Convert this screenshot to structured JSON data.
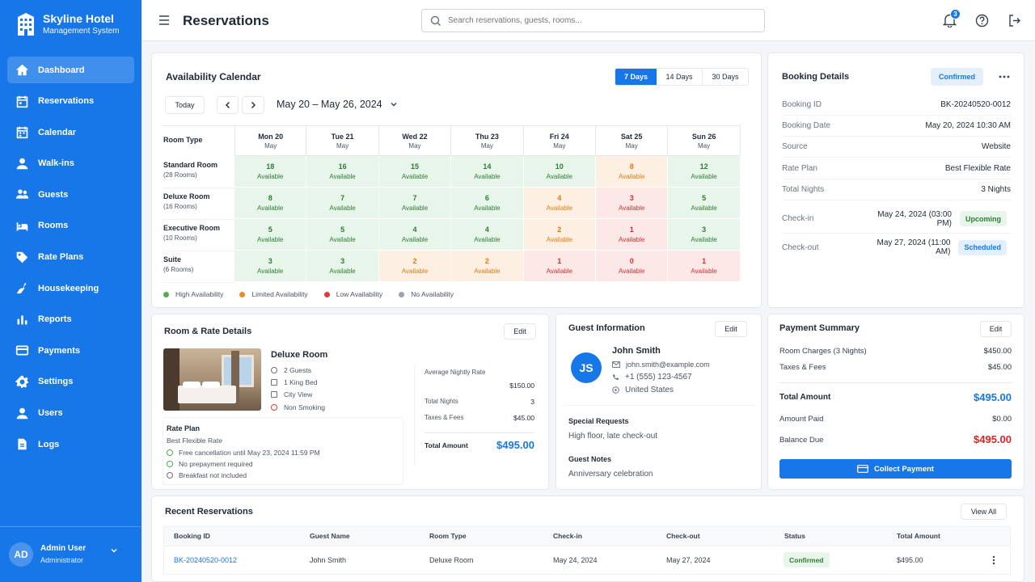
{
  "brand": {
    "name": "Skyline Hotel",
    "sub": "Management System"
  },
  "nav": [
    {
      "label": "Dashboard",
      "icon": "home-icon",
      "active": true
    },
    {
      "label": "Reservations",
      "icon": "calendar-icon"
    },
    {
      "label": "Calendar",
      "icon": "calendar-grid-icon"
    },
    {
      "label": "Walk-ins",
      "icon": "person-icon"
    },
    {
      "label": "Guests",
      "icon": "users-icon"
    },
    {
      "label": "Rooms",
      "icon": "bed-icon"
    },
    {
      "label": "Rate Plans",
      "icon": "tag-icon"
    },
    {
      "label": "Housekeeping",
      "icon": "broom-icon"
    },
    {
      "label": "Reports",
      "icon": "bar-chart-icon"
    },
    {
      "label": "Payments",
      "icon": "card-icon"
    },
    {
      "label": "Settings",
      "icon": "gear-icon"
    },
    {
      "label": "Users",
      "icon": "user-icon"
    },
    {
      "label": "Logs",
      "icon": "document-icon"
    }
  ],
  "user": {
    "initials": "AD",
    "name": "Admin User",
    "role": "Administrator"
  },
  "header": {
    "title": "Reservations",
    "search_placeholder": "Search reservations, guests, rooms...",
    "notif_count": "3"
  },
  "calendar": {
    "title": "Availability Calendar",
    "ranges": [
      "7 Days",
      "14 Days",
      "30 Days"
    ],
    "active_range": "7 Days",
    "today": "Today",
    "period": "May 20 – May 26, 2024",
    "room_type_header": "Room Type",
    "days": [
      {
        "d": "Mon 20",
        "m": "May"
      },
      {
        "d": "Tue 21",
        "m": "May"
      },
      {
        "d": "Wed 22",
        "m": "May"
      },
      {
        "d": "Thu 23",
        "m": "May"
      },
      {
        "d": "Fri 24",
        "m": "May"
      },
      {
        "d": "Sat 25",
        "m": "May"
      },
      {
        "d": "Sun 26",
        "m": "May"
      }
    ],
    "rooms": [
      {
        "name": "Standard Room",
        "count": "(28 Rooms)",
        "values": [
          18,
          16,
          15,
          14,
          10,
          8,
          12
        ]
      },
      {
        "name": "Deluxe Room",
        "count": "(16 Rooms)",
        "values": [
          8,
          7,
          7,
          6,
          4,
          3,
          5
        ]
      },
      {
        "name": "Executive Room",
        "count": "(10 Rooms)",
        "values": [
          5,
          5,
          4,
          4,
          2,
          1,
          3
        ]
      },
      {
        "name": "Suite",
        "count": "(6 Rooms)",
        "values": [
          3,
          3,
          2,
          2,
          1,
          0,
          1
        ]
      }
    ],
    "avail_label": "Available",
    "levels": {
      "Standard Room": [
        "high",
        "high",
        "high",
        "high",
        "high",
        "limited",
        "high"
      ],
      "Deluxe Room": [
        "high",
        "high",
        "high",
        "high",
        "limited",
        "low",
        "high"
      ],
      "Executive Room": [
        "high",
        "high",
        "high",
        "high",
        "limited",
        "low",
        "high"
      ],
      "Suite": [
        "high",
        "high",
        "limited",
        "limited",
        "low",
        "low",
        "low"
      ]
    },
    "legend": [
      {
        "label": "High Availability",
        "color": "#4caf50"
      },
      {
        "label": "Limited Availability",
        "color": "#ef8a1f"
      },
      {
        "label": "Low Availability",
        "color": "#e53935"
      },
      {
        "label": "No Availability",
        "color": "#9ca3af"
      }
    ]
  },
  "booking": {
    "title": "Booking Details",
    "status": "Confirmed",
    "rows": [
      {
        "k": "Booking ID",
        "v": "BK-20240520-0012"
      },
      {
        "k": "Booking Date",
        "v": "May 20, 2024 10:30 AM"
      },
      {
        "k": "Source",
        "v": "Website"
      },
      {
        "k": "Rate Plan",
        "v": "Best Flexible Rate"
      },
      {
        "k": "Total Nights",
        "v": "3 Nights"
      }
    ],
    "checkin": {
      "k": "Check-in",
      "v": "May 24, 2024 (03:00 PM)",
      "badge": "Upcoming"
    },
    "checkout": {
      "k": "Check-out",
      "v": "May 27, 2024 (11:00 AM)",
      "badge": "Scheduled"
    }
  },
  "room_rate": {
    "title": "Room & Rate Details",
    "edit": "Edit",
    "room": "Deluxe Room",
    "features": [
      "2 Guests",
      "1 King Bed",
      "City View",
      "Non Smoking"
    ],
    "rate_plan_label": "Rate Plan",
    "rate_plan": "Best Flexible Rate",
    "policies": [
      "Free cancellation until May 23, 2024 11:59 PM",
      "No prepayment required",
      "Breakfast not included"
    ],
    "avg_label": "Average Nightly Rate",
    "avg": "$150.00",
    "nights_label": "Total Nights",
    "nights": "3",
    "tax_label": "Taxes & Fees",
    "tax": "$45.00",
    "total_label": "Total Amount",
    "total": "$495.00"
  },
  "guest": {
    "title": "Guest Information",
    "edit": "Edit",
    "initials": "JS",
    "name": "John Smith",
    "email": "john.smith@example.com",
    "phone": "+1 (555) 123-4567",
    "country": "United States",
    "req_label": "Special Requests",
    "req": "High floor, late check-out",
    "notes_label": "Guest Notes",
    "notes": "Anniversary celebration"
  },
  "payment": {
    "title": "Payment Summary",
    "edit": "Edit",
    "charges_label": "Room Charges (3 Nights)",
    "charges": "$450.00",
    "tax_label": "Taxes & Fees",
    "tax": "$45.00",
    "total_label": "Total Amount",
    "total": "$495.00",
    "paid_label": "Amount Paid",
    "paid": "$0.00",
    "due_label": "Balance Due",
    "due": "$495.00",
    "collect": "Collect Payment"
  },
  "recent": {
    "title": "Recent Reservations",
    "view_all": "View All",
    "columns": [
      "Booking ID",
      "Guest Name",
      "Room Type",
      "Check-in",
      "Check-out",
      "Status",
      "Total Amount"
    ],
    "rows": [
      {
        "id": "BK-20240520-0012",
        "guest": "John Smith",
        "room": "Deluxe Room",
        "in": "May 24, 2024",
        "out": "May 27, 2024",
        "status": "Confirmed",
        "total": "$495.00"
      }
    ]
  },
  "colors": {
    "primary": "#1877e8",
    "high_bg": "#e8f5ea",
    "limited_bg": "#fdf0e3",
    "low_bg": "#fde8e8",
    "high_fg": "#2e7d32",
    "limited_fg": "#e07b12",
    "low_fg": "#d32f2f",
    "due": "#dc2626"
  }
}
